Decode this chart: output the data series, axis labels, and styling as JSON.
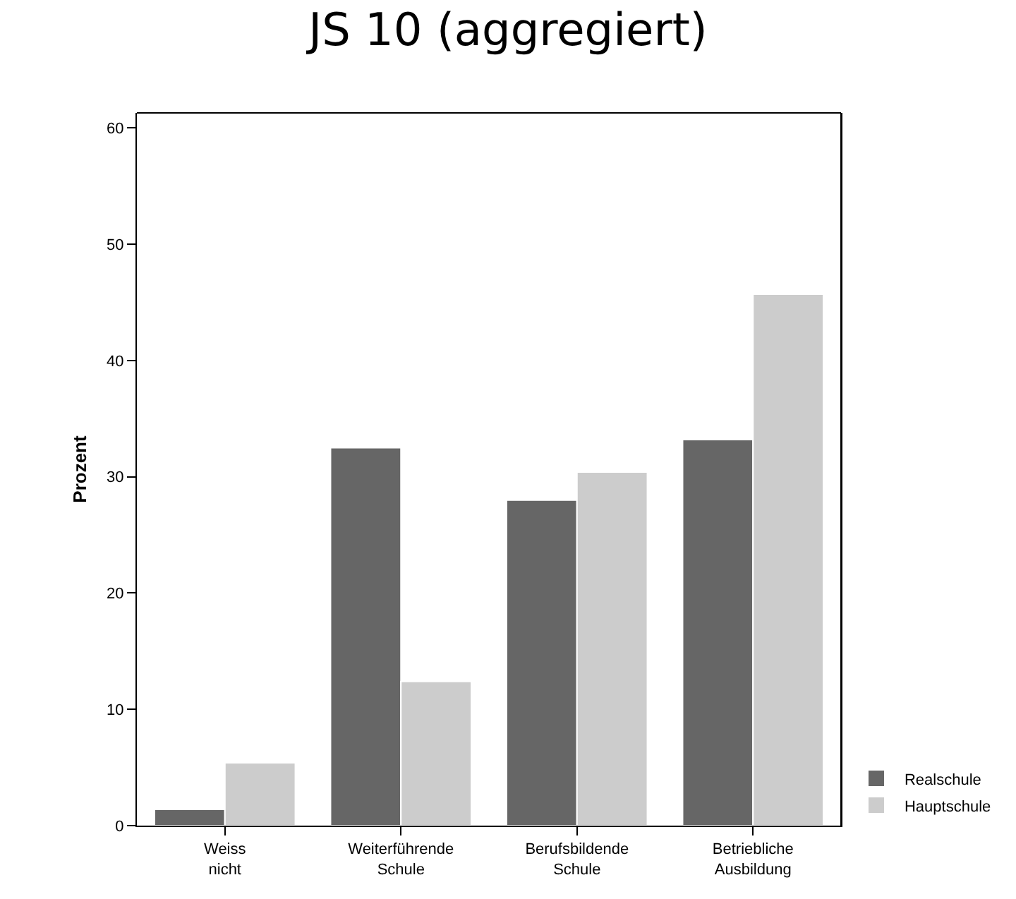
{
  "chart_data": {
    "type": "bar",
    "title": "JS 10 (aggregiert)",
    "ylabel": "Prozent",
    "categories": [
      "Weiss nicht",
      "Weiterführende Schule",
      "Berufsbildende Schule",
      "Betriebliche Ausbildung"
    ],
    "series": [
      {
        "name": "Realschule",
        "color": "#666666",
        "values": [
          1.4,
          32.5,
          28.0,
          33.2
        ]
      },
      {
        "name": "Hauptschule",
        "color": "#cccccc",
        "values": [
          5.4,
          12.4,
          30.4,
          45.7
        ]
      }
    ],
    "ylim": [
      0,
      61.3
    ],
    "yticks": [
      0,
      10,
      20,
      30,
      40,
      50,
      60
    ],
    "grid": false,
    "legend": "bottom right"
  }
}
